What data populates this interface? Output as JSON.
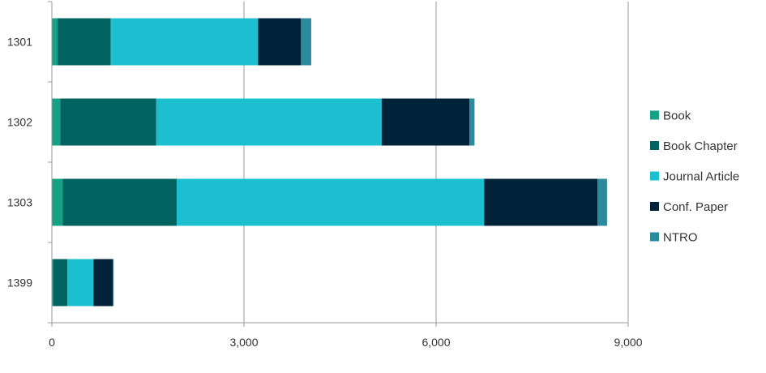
{
  "chart_data": {
    "type": "bar",
    "orientation": "horizontal",
    "stacked": true,
    "categories": [
      "1301",
      "1302",
      "1303",
      "1399"
    ],
    "series": [
      {
        "name": "Book",
        "color": "#16a085",
        "values": [
          90,
          130,
          170,
          20
        ]
      },
      {
        "name": "Book Chapter",
        "color": "#006360",
        "values": [
          830,
          1500,
          1780,
          220
        ]
      },
      {
        "name": "Journal Article",
        "color": "#1bbfd0",
        "values": [
          2300,
          3520,
          4800,
          410
        ]
      },
      {
        "name": "Conf. Paper",
        "color": "#00233a",
        "values": [
          670,
          1370,
          1770,
          300
        ]
      },
      {
        "name": "NTRO",
        "color": "#2b8a9c",
        "values": [
          160,
          80,
          150,
          15
        ]
      }
    ],
    "x_ticks": [
      "0",
      "3,000",
      "6,000",
      "9,000"
    ],
    "x_tick_values": [
      0,
      3000,
      6000,
      9000
    ],
    "xlim": [
      0,
      9000
    ],
    "grid": "vertical",
    "legend": "right",
    "title": "",
    "xlabel": "",
    "ylabel": ""
  }
}
